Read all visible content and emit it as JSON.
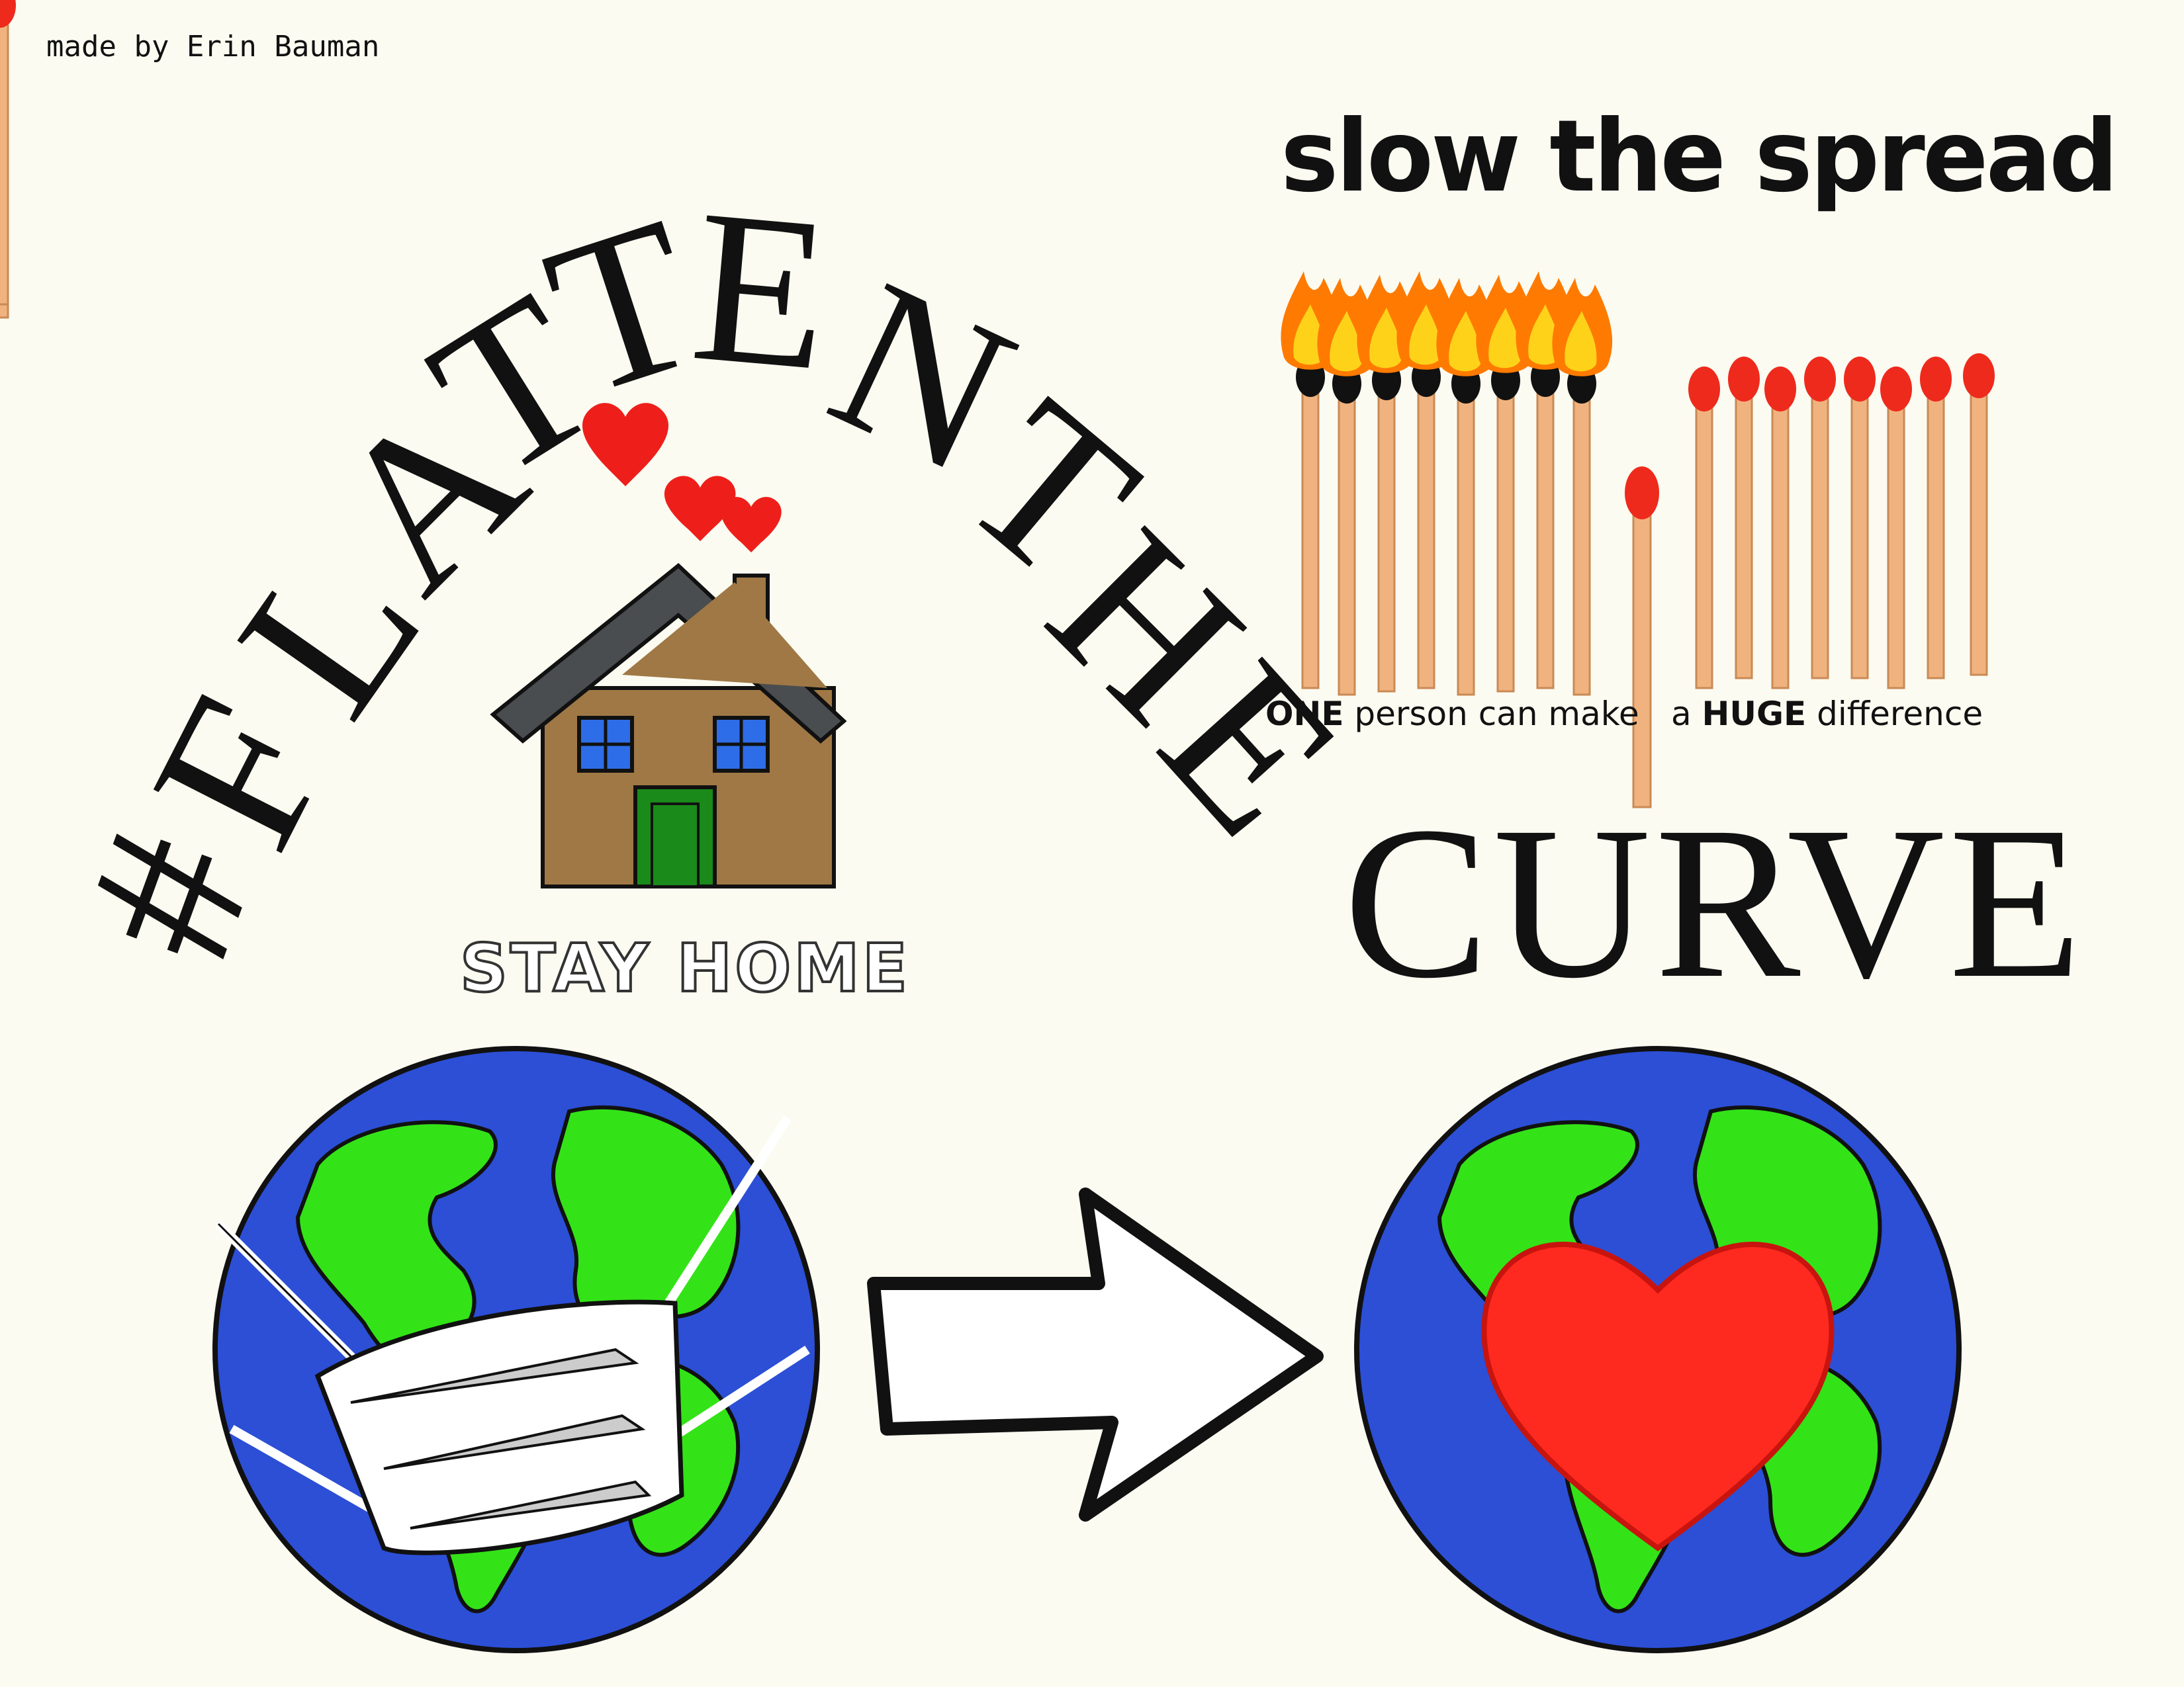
{
  "credit": "made by Erin Bauman",
  "headline_arc": {
    "letters": [
      "#",
      "F",
      "L",
      "A",
      "T",
      "T",
      "E",
      "N",
      " ",
      "T",
      "H",
      "E"
    ]
  },
  "curve_word": "CURVE",
  "slow_title": "slow the spread",
  "matches_caption": {
    "left_bold": "ONE",
    "left_rest": " person can make",
    "right_pre": "a ",
    "right_bold": "HUGE",
    "right_rest": " difference"
  },
  "stay_home": "STAY HOME",
  "colors": {
    "background": "#fbfbf1",
    "ocean": "#2c4fd6",
    "land": "#33e317",
    "heart": "#ff2a1f",
    "house_wall": "#a07845",
    "roof": "#4a4d4f",
    "door": "#1a8a1a",
    "window": "#2e6de8",
    "match_stick": "#f0b37f",
    "match_head": "#ee2a1c",
    "flame": "#ff8a00"
  },
  "icons": [
    "house-icon",
    "heart-icon",
    "burning-match-icon",
    "match-icon",
    "globe-with-mask-icon",
    "arrow-right-icon",
    "globe-with-heart-icon"
  ]
}
